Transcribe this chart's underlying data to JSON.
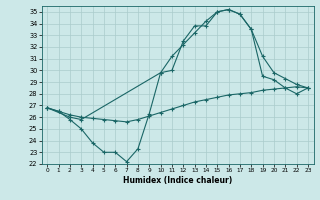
{
  "xlabel": "Humidex (Indice chaleur)",
  "bg_color": "#cce8e8",
  "grid_color": "#aacccc",
  "line_color": "#1a6666",
  "xlim": [
    -0.5,
    23.5
  ],
  "ylim": [
    22,
    35.5
  ],
  "xticks": [
    0,
    1,
    2,
    3,
    4,
    5,
    6,
    7,
    8,
    9,
    10,
    11,
    12,
    13,
    14,
    15,
    16,
    17,
    18,
    19,
    20,
    21,
    22,
    23
  ],
  "yticks": [
    22,
    23,
    24,
    25,
    26,
    27,
    28,
    29,
    30,
    31,
    32,
    33,
    34,
    35
  ],
  "line1_x": [
    0,
    1,
    2,
    3,
    4,
    5,
    6,
    7,
    8,
    9,
    10,
    11,
    12,
    13,
    14,
    15,
    16,
    17,
    18,
    19,
    20,
    21,
    22,
    23
  ],
  "line1_y": [
    26.8,
    26.5,
    25.8,
    25.0,
    23.8,
    23.0,
    23.0,
    22.2,
    23.3,
    26.3,
    29.8,
    30.0,
    32.5,
    33.8,
    33.8,
    35.0,
    35.2,
    34.8,
    33.5,
    29.5,
    29.2,
    28.5,
    28.0,
    28.5
  ],
  "line2_x": [
    0,
    2,
    3,
    10,
    11,
    12,
    13,
    14,
    15,
    16,
    17,
    18,
    19,
    20,
    21,
    22,
    23
  ],
  "line2_y": [
    26.8,
    26.0,
    25.8,
    29.8,
    31.2,
    32.2,
    33.2,
    34.2,
    35.0,
    35.2,
    34.8,
    33.5,
    31.2,
    29.8,
    29.3,
    28.8,
    28.5
  ],
  "line3_x": [
    0,
    1,
    2,
    3,
    4,
    5,
    6,
    7,
    8,
    9,
    10,
    11,
    12,
    13,
    14,
    15,
    16,
    17,
    18,
    19,
    20,
    21,
    22,
    23
  ],
  "line3_y": [
    26.8,
    26.5,
    26.2,
    26.0,
    25.9,
    25.8,
    25.7,
    25.6,
    25.8,
    26.1,
    26.4,
    26.7,
    27.0,
    27.3,
    27.5,
    27.7,
    27.9,
    28.0,
    28.1,
    28.3,
    28.4,
    28.5,
    28.6,
    28.5
  ]
}
